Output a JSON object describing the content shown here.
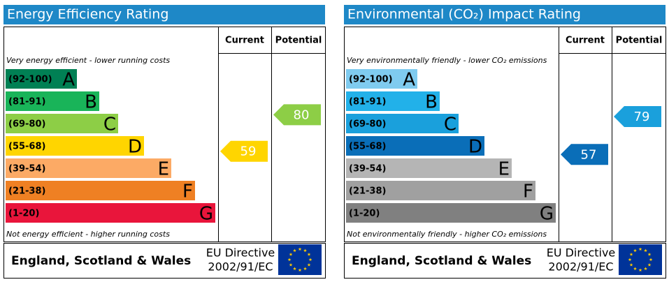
{
  "chart_data": [
    {
      "type": "epc",
      "title": "Energy Efficiency Rating",
      "column_headers": [
        "Current",
        "Potential"
      ],
      "top_note": "Very energy efficient - lower running costs",
      "bottom_note": "Not energy efficient - higher running costs",
      "bands": [
        {
          "range": "(92-100)",
          "letter": "A",
          "color": "#008054"
        },
        {
          "range": "(81-91)",
          "letter": "B",
          "color": "#19b459"
        },
        {
          "range": "(69-80)",
          "letter": "C",
          "color": "#8dce46"
        },
        {
          "range": "(55-68)",
          "letter": "D",
          "color": "#ffd500"
        },
        {
          "range": "(39-54)",
          "letter": "E",
          "color": "#fcaa65"
        },
        {
          "range": "(21-38)",
          "letter": "F",
          "color": "#ef8023"
        },
        {
          "range": "(1-20)",
          "letter": "G",
          "color": "#e9153b"
        }
      ],
      "current": 59,
      "potential": 80,
      "footer": {
        "region": "England, Scotland & Wales",
        "directive": "EU Directive",
        "directive_code": "2002/91/EC"
      }
    },
    {
      "type": "epc",
      "title": "Environmental (CO₂) Impact Rating",
      "column_headers": [
        "Current",
        "Potential"
      ],
      "top_note": "Very environmentally friendly - lower CO₂ emissions",
      "bottom_note": "Not environmentally friendly - higher CO₂ emissions",
      "bands": [
        {
          "range": "(92-100)",
          "letter": "A",
          "color": "#7fcbef"
        },
        {
          "range": "(81-91)",
          "letter": "B",
          "color": "#22b1e9"
        },
        {
          "range": "(69-80)",
          "letter": "C",
          "color": "#1aa0dc"
        },
        {
          "range": "(55-68)",
          "letter": "D",
          "color": "#0a6eb8"
        },
        {
          "range": "(39-54)",
          "letter": "E",
          "color": "#b5b5b5"
        },
        {
          "range": "(21-38)",
          "letter": "F",
          "color": "#a0a0a0"
        },
        {
          "range": "(1-20)",
          "letter": "G",
          "color": "#808080"
        }
      ],
      "current": 57,
      "potential": 79,
      "footer": {
        "region": "England, Scotland & Wales",
        "directive": "EU Directive",
        "directive_code": "2002/91/EC"
      }
    }
  ]
}
